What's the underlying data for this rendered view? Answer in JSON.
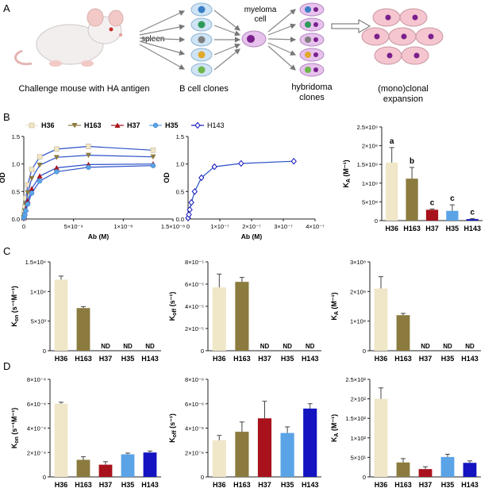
{
  "schematic": {
    "panel_letter": "A",
    "spleen_label": "spleen",
    "myeloma_label_line1": "myeloma",
    "myeloma_label_line2": "cell",
    "caption_challenge": "Challenge mouse with HA antigen",
    "caption_bcell": "B cell clones",
    "caption_hybridoma_line1": "hybridoma",
    "caption_hybridoma_line2": "clones",
    "caption_expansion_line1": "(mono)clonal",
    "caption_expansion_line2": "expansion"
  },
  "panel_letters": {
    "b": "B",
    "c": "C",
    "d": "D"
  },
  "colors": {
    "H36": "#f0e6c8",
    "H163": "#8b7b3e",
    "H37": "#a8121c",
    "H35": "#5aa3e6",
    "H143": "#1414c0",
    "fit_line": "#2a50c8",
    "schematic_arrow": "#777777",
    "error_bar": "#444444"
  },
  "chart_data": [
    {
      "id": "B1",
      "type": "line",
      "title": "",
      "xlabel": "Ab (M)",
      "ylabel": "OD",
      "xlim": [
        0,
        1.5e-08
      ],
      "ylim": [
        0,
        1.5
      ],
      "x_ticks": [
        "0",
        "5×10⁻⁹",
        "1×10⁻⁸",
        "1.5×10⁻⁸"
      ],
      "y_ticks": [
        "0.0",
        "0.5",
        "1.0",
        "1.5"
      ],
      "legend_position": "top",
      "series": [
        {
          "name": "H36",
          "marker": "square",
          "color": "#f0e6c8",
          "x": [
            0,
            5e-11,
            1e-10,
            2e-10,
            4e-10,
            8e-10,
            1.6e-09,
            3.3e-09,
            6.5e-09,
            1.3e-08
          ],
          "y": [
            0.03,
            0.12,
            0.22,
            0.38,
            0.62,
            0.9,
            1.13,
            1.27,
            1.32,
            1.25
          ]
        },
        {
          "name": "H163",
          "marker": "triangle-down",
          "color": "#8b7b3e",
          "x": [
            0,
            5e-11,
            1e-10,
            2e-10,
            4e-10,
            8e-10,
            1.6e-09,
            3.3e-09,
            6.5e-09,
            1.3e-08
          ],
          "y": [
            0.03,
            0.08,
            0.15,
            0.27,
            0.48,
            0.74,
            0.98,
            1.12,
            1.16,
            1.13
          ]
        },
        {
          "name": "H37",
          "marker": "triangle-up",
          "color": "#a8121c",
          "x": [
            0,
            5e-11,
            1e-10,
            2e-10,
            4e-10,
            8e-10,
            1.6e-09,
            3.3e-09,
            6.5e-09,
            1.3e-08
          ],
          "y": [
            0.02,
            0.05,
            0.1,
            0.18,
            0.33,
            0.55,
            0.78,
            0.93,
            0.99,
            1.0
          ]
        },
        {
          "name": "H35",
          "marker": "circle",
          "color": "#5aa3e6",
          "x": [
            0,
            5e-11,
            1e-10,
            2e-10,
            4e-10,
            8e-10,
            1.6e-09,
            3.3e-09,
            6.5e-09,
            1.3e-08
          ],
          "y": [
            0.02,
            0.04,
            0.08,
            0.15,
            0.27,
            0.47,
            0.69,
            0.86,
            0.94,
            0.97
          ]
        }
      ]
    },
    {
      "id": "B2",
      "type": "line",
      "title": "",
      "xlabel": "Ab (M)",
      "ylabel": "OD",
      "xlim": [
        0,
        4e-07
      ],
      "ylim": [
        0,
        1.5
      ],
      "x_ticks": [
        "0",
        "1×10⁻⁷",
        "2×10⁻⁷",
        "3×10⁻⁷",
        "4×10⁻⁷"
      ],
      "y_ticks": [
        "0.0",
        "0.5",
        "1.0",
        "1.5"
      ],
      "legend_position": "top-left",
      "series": [
        {
          "name": "H143",
          "marker": "diamond-open",
          "color": "#1414c0",
          "x": [
            0,
            2.6e-09,
            5.2e-09,
            1.04e-08,
            2.08e-08,
            4.2e-08,
            8.3e-08,
            1.67e-07,
            3.33e-07
          ],
          "y": [
            0.02,
            0.08,
            0.17,
            0.3,
            0.5,
            0.75,
            0.95,
            1.01,
            1.05
          ]
        }
      ]
    },
    {
      "id": "B3",
      "type": "bar",
      "title": "",
      "ylabel": "K_A (M⁻¹)",
      "ylim": [
        0,
        2500000000.0
      ],
      "y_ticks": [
        "0",
        "5×10⁸",
        "1×10⁹",
        "1.5×10⁹",
        "2×10⁹",
        "2.5×10⁹"
      ],
      "categories": [
        "H36",
        "H163",
        "H37",
        "H35",
        "H143"
      ],
      "values": [
        1550000000.0,
        1120000000.0,
        290000000.0,
        260000000.0,
        40000000.0
      ],
      "errors": [
        400000000.0,
        300000000.0,
        20000000.0,
        160000000.0,
        15000000.0
      ],
      "annotations": [
        "a",
        "b",
        "c",
        "c",
        "c"
      ]
    },
    {
      "id": "C1",
      "type": "bar",
      "title": "",
      "ylabel": "K_on (s⁻¹M⁻¹)",
      "ylim": [
        0,
        15000.0
      ],
      "y_ticks": [
        "0",
        "5×10³",
        "1×10⁴",
        "1.5×10⁴"
      ],
      "categories": [
        "H36",
        "H163",
        "H37",
        "H35",
        "H143"
      ],
      "values": [
        12000,
        7200,
        null,
        null,
        null
      ],
      "errors": [
        600,
        250,
        null,
        null,
        null
      ],
      "annotations": [
        "",
        "",
        "ND",
        "ND",
        "ND"
      ]
    },
    {
      "id": "C2",
      "type": "bar",
      "title": "",
      "ylabel": "K_off (s⁻¹)",
      "ylim": [
        0,
        8e-05
      ],
      "y_ticks": [
        "0",
        "2×10⁻⁵",
        "4×10⁻⁵",
        "6×10⁻⁵",
        "8×10⁻⁵"
      ],
      "categories": [
        "H36",
        "H163",
        "H37",
        "H35",
        "H143"
      ],
      "values": [
        5.7e-05,
        6.2e-05,
        null,
        null,
        null
      ],
      "errors": [
        1.2e-05,
        4e-06,
        null,
        null,
        null
      ],
      "annotations": [
        "",
        "",
        "ND",
        "ND",
        "ND"
      ]
    },
    {
      "id": "C3",
      "type": "bar",
      "title": "",
      "ylabel": "K_A (M⁻¹)",
      "ylim": [
        0,
        300000000.0
      ],
      "y_ticks": [
        "0",
        "1×10⁸",
        "2×10⁸",
        "3×10⁸"
      ],
      "categories": [
        "H36",
        "H163",
        "H37",
        "H35",
        "H143"
      ],
      "values": [
        210000000.0,
        120000000.0,
        null,
        null,
        null
      ],
      "errors": [
        40000000.0,
        6000000.0,
        null,
        null,
        null
      ],
      "annotations": [
        "",
        "",
        "ND",
        "ND",
        "ND"
      ]
    },
    {
      "id": "D1",
      "type": "bar",
      "title": "",
      "ylabel": "K_on (s⁻¹M⁻¹)",
      "ylim": [
        0,
        0.0008
      ],
      "y_ticks": [
        "0",
        "2×10⁻⁴",
        "4×10⁻⁴",
        "6×10⁻⁴",
        "8×10⁻⁴"
      ],
      "categories": [
        "H36",
        "H163",
        "H37",
        "H35",
        "H143"
      ],
      "values": [
        0.0006,
        0.00014,
        0.0001,
        0.000185,
        0.0002
      ],
      "errors": [
        1.2e-05,
        2.5e-05,
        2.5e-05,
        1e-05,
        1.2e-05
      ],
      "annotations": [
        "",
        "",
        "",
        "",
        ""
      ]
    },
    {
      "id": "D2",
      "type": "bar",
      "title": "",
      "ylabel": "K_off (s⁻¹)",
      "ylim": [
        0,
        8e-06
      ],
      "y_ticks": [
        "0",
        "2×10⁻⁶",
        "4×10⁻⁶",
        "6×10⁻⁶",
        "8×10⁻⁶"
      ],
      "categories": [
        "H36",
        "H163",
        "H37",
        "H35",
        "H143"
      ],
      "values": [
        3e-06,
        3.7e-06,
        4.8e-06,
        3.6e-06,
        5.6e-06
      ],
      "errors": [
        4e-07,
        8e-07,
        1.4e-06,
        5e-07,
        4e-07
      ],
      "annotations": [
        "",
        "",
        "",
        "",
        ""
      ]
    },
    {
      "id": "D3",
      "type": "bar",
      "title": "",
      "ylabel": "K_A (M⁻¹)",
      "ylim": [
        0,
        250.0
      ],
      "y_ticks": [
        "0",
        "5×10¹",
        "1×10²",
        "1.5×10²",
        "2×10²",
        "2.5×10²"
      ],
      "categories": [
        "H36",
        "H163",
        "H37",
        "H35",
        "H143"
      ],
      "values": [
        200,
        37,
        20,
        51,
        36
      ],
      "errors": [
        28,
        10,
        6,
        7,
        5
      ],
      "annotations": [
        "",
        "",
        "",
        "",
        ""
      ]
    }
  ]
}
